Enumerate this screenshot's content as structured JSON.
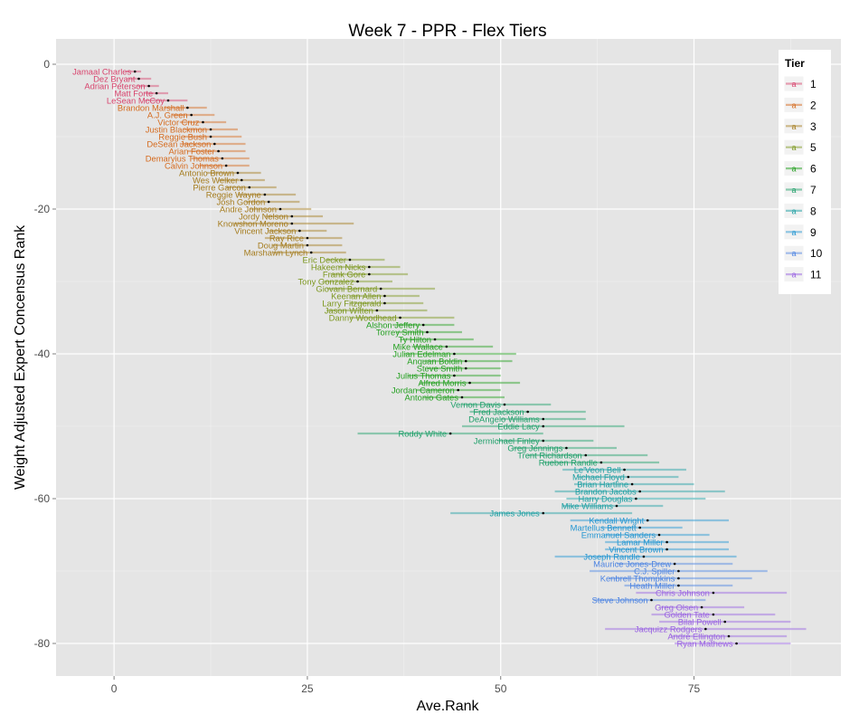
{
  "chart_data": {
    "type": "scatter",
    "title": "Week 7 - PPR - Flex Tiers",
    "xlabel": "Ave.Rank",
    "ylabel": "Weight Adjusted Expert Concensus Rank",
    "xlim": [
      -7.5,
      94
    ],
    "ylim": [
      -84.5,
      3.5
    ],
    "xticks": [
      0,
      25,
      50,
      75
    ],
    "yticks": [
      0,
      -20,
      -40,
      -60,
      -80
    ],
    "legend": {
      "title": "Tier",
      "position": "right",
      "glyph": "a"
    },
    "tiers": [
      {
        "tier": "1",
        "color": "#D8456E"
      },
      {
        "tier": "2",
        "color": "#D56B1F"
      },
      {
        "tier": "3",
        "color": "#A57C1E"
      },
      {
        "tier": "5",
        "color": "#7C971E"
      },
      {
        "tier": "6",
        "color": "#23A020"
      },
      {
        "tier": "7",
        "color": "#1FA06A"
      },
      {
        "tier": "8",
        "color": "#1EA0A3"
      },
      {
        "tier": "9",
        "color": "#2396D2"
      },
      {
        "tier": "10",
        "color": "#4D84E2"
      },
      {
        "tier": "11",
        "color": "#9A63E2"
      }
    ],
    "players": [
      {
        "name": "Jamaal Charles",
        "rank": 1,
        "avg": 2.7,
        "lo": 1.5,
        "hi": 3.5,
        "tier": "1"
      },
      {
        "name": "Dez Bryant",
        "rank": 2,
        "avg": 3.2,
        "lo": 1.8,
        "hi": 4.8,
        "tier": "1"
      },
      {
        "name": "Adrian Peterson",
        "rank": 3,
        "avg": 4.5,
        "lo": 3.0,
        "hi": 5.8,
        "tier": "1"
      },
      {
        "name": "Matt Forte",
        "rank": 4,
        "avg": 5.5,
        "lo": 4.0,
        "hi": 7.0,
        "tier": "1"
      },
      {
        "name": "LeSean McCoy",
        "rank": 5,
        "avg": 7.0,
        "lo": 4.0,
        "hi": 9.5,
        "tier": "1"
      },
      {
        "name": "Brandon Marshall",
        "rank": 6,
        "avg": 9.5,
        "lo": 6.5,
        "hi": 12.0,
        "tier": "2"
      },
      {
        "name": "A.J. Green",
        "rank": 7,
        "avg": 10.0,
        "lo": 7.5,
        "hi": 13.0,
        "tier": "2"
      },
      {
        "name": "Victor Cruz",
        "rank": 8,
        "avg": 11.5,
        "lo": 8.5,
        "hi": 14.5,
        "tier": "2"
      },
      {
        "name": "Justin Blackmon",
        "rank": 9,
        "avg": 12.5,
        "lo": 9.0,
        "hi": 16.0,
        "tier": "2"
      },
      {
        "name": "Reggie Bush",
        "rank": 10,
        "avg": 12.5,
        "lo": 9.0,
        "hi": 16.5,
        "tier": "2"
      },
      {
        "name": "DeSean Jackson",
        "rank": 11,
        "avg": 13.0,
        "lo": 8.5,
        "hi": 17.0,
        "tier": "2"
      },
      {
        "name": "Arian Foster",
        "rank": 12,
        "avg": 13.5,
        "lo": 9.5,
        "hi": 17.0,
        "tier": "2"
      },
      {
        "name": "Demaryius Thomas",
        "rank": 13,
        "avg": 14.0,
        "lo": 10.0,
        "hi": 17.5,
        "tier": "2"
      },
      {
        "name": "Calvin Johnson",
        "rank": 14,
        "avg": 14.5,
        "lo": 11.0,
        "hi": 17.5,
        "tier": "2"
      },
      {
        "name": "Antonio Brown",
        "rank": 15,
        "avg": 16.0,
        "lo": 12.0,
        "hi": 19.0,
        "tier": "3"
      },
      {
        "name": "Wes Welker",
        "rank": 16,
        "avg": 16.5,
        "lo": 13.5,
        "hi": 19.5,
        "tier": "3"
      },
      {
        "name": "Pierre Garcon",
        "rank": 17,
        "avg": 17.5,
        "lo": 14.5,
        "hi": 21.0,
        "tier": "3"
      },
      {
        "name": "Reggie Wayne",
        "rank": 18,
        "avg": 19.5,
        "lo": 16.0,
        "hi": 23.5,
        "tier": "3"
      },
      {
        "name": "Josh Gordon",
        "rank": 19,
        "avg": 20.0,
        "lo": 17.0,
        "hi": 24.0,
        "tier": "3"
      },
      {
        "name": "Andre Johnson",
        "rank": 20,
        "avg": 21.5,
        "lo": 17.5,
        "hi": 25.5,
        "tier": "3"
      },
      {
        "name": "Jordy Nelson",
        "rank": 21,
        "avg": 23.0,
        "lo": 19.5,
        "hi": 27.0,
        "tier": "3"
      },
      {
        "name": "Knowshon Moreno",
        "rank": 22,
        "avg": 23.0,
        "lo": 15.5,
        "hi": 31.0,
        "tier": "3"
      },
      {
        "name": "Vincent Jackson",
        "rank": 23,
        "avg": 24.0,
        "lo": 20.0,
        "hi": 27.5,
        "tier": "3"
      },
      {
        "name": "Ray Rice",
        "rank": 24,
        "avg": 25.0,
        "lo": 19.5,
        "hi": 29.5,
        "tier": "3"
      },
      {
        "name": "Doug Martin",
        "rank": 25,
        "avg": 25.0,
        "lo": 20.5,
        "hi": 29.5,
        "tier": "3"
      },
      {
        "name": "Marshawn Lynch",
        "rank": 26,
        "avg": 25.5,
        "lo": 20.5,
        "hi": 30.0,
        "tier": "3"
      },
      {
        "name": "Eric Decker",
        "rank": 27,
        "avg": 30.5,
        "lo": 27.5,
        "hi": 35.0,
        "tier": "5"
      },
      {
        "name": "Hakeem Nicks",
        "rank": 28,
        "avg": 33.0,
        "lo": 29.0,
        "hi": 37.0,
        "tier": "5"
      },
      {
        "name": "Frank Gore",
        "rank": 29,
        "avg": 33.0,
        "lo": 28.0,
        "hi": 38.0,
        "tier": "5"
      },
      {
        "name": "Tony Gonzalez",
        "rank": 30,
        "avg": 31.5,
        "lo": 27.0,
        "hi": 36.0,
        "tier": "5"
      },
      {
        "name": "Giovani Bernard",
        "rank": 31,
        "avg": 34.5,
        "lo": 27.5,
        "hi": 41.5,
        "tier": "5"
      },
      {
        "name": "Keenan Allen",
        "rank": 32,
        "avg": 35.0,
        "lo": 30.5,
        "hi": 39.5,
        "tier": "5"
      },
      {
        "name": "Larry Fitzgerald",
        "rank": 33,
        "avg": 35.0,
        "lo": 30.5,
        "hi": 40.0,
        "tier": "5"
      },
      {
        "name": "Jason Witten",
        "rank": 34,
        "avg": 34.0,
        "lo": 27.5,
        "hi": 40.5,
        "tier": "5"
      },
      {
        "name": "Danny Woodhead",
        "rank": 35,
        "avg": 37.0,
        "lo": 30.5,
        "hi": 44.0,
        "tier": "5"
      },
      {
        "name": "Alshon Jeffery",
        "rank": 36,
        "avg": 40.0,
        "lo": 36.0,
        "hi": 44.0,
        "tier": "6"
      },
      {
        "name": "Torrey Smith",
        "rank": 37,
        "avg": 40.5,
        "lo": 36.5,
        "hi": 45.0,
        "tier": "6"
      },
      {
        "name": "Ty Hilton",
        "rank": 38,
        "avg": 41.5,
        "lo": 37.0,
        "hi": 46.5,
        "tier": "6"
      },
      {
        "name": "Mike Wallace",
        "rank": 39,
        "avg": 43.0,
        "lo": 38.5,
        "hi": 49.0,
        "tier": "6"
      },
      {
        "name": "Julian Edelman",
        "rank": 40,
        "avg": 44.0,
        "lo": 37.5,
        "hi": 52.0,
        "tier": "6"
      },
      {
        "name": "Anquan Boldin",
        "rank": 41,
        "avg": 45.5,
        "lo": 40.0,
        "hi": 51.5,
        "tier": "6"
      },
      {
        "name": "Steve Smith",
        "rank": 42,
        "avg": 45.5,
        "lo": 40.5,
        "hi": 50.0,
        "tier": "6"
      },
      {
        "name": "Julius Thomas",
        "rank": 43,
        "avg": 44.0,
        "lo": 38.0,
        "hi": 50.0,
        "tier": "6"
      },
      {
        "name": "Alfred Morris",
        "rank": 44,
        "avg": 46.0,
        "lo": 39.5,
        "hi": 52.5,
        "tier": "6"
      },
      {
        "name": "Jordan Cameron",
        "rank": 45,
        "avg": 44.5,
        "lo": 39.0,
        "hi": 50.0,
        "tier": "6"
      },
      {
        "name": "Antonio Gates",
        "rank": 46,
        "avg": 45.0,
        "lo": 40.0,
        "hi": 50.5,
        "tier": "6"
      },
      {
        "name": "Vernon Davis",
        "rank": 47,
        "avg": 50.5,
        "lo": 45.0,
        "hi": 56.5,
        "tier": "7"
      },
      {
        "name": "Fred Jackson",
        "rank": 48,
        "avg": 53.5,
        "lo": 46.0,
        "hi": 61.0,
        "tier": "7"
      },
      {
        "name": "DeAngelo Williams",
        "rank": 49,
        "avg": 55.5,
        "lo": 50.0,
        "hi": 61.0,
        "tier": "7"
      },
      {
        "name": "Eddie Lacy",
        "rank": 50,
        "avg": 55.5,
        "lo": 45.0,
        "hi": 66.0,
        "tier": "7"
      },
      {
        "name": "Roddy White",
        "rank": 51,
        "avg": 43.5,
        "lo": 31.5,
        "hi": 55.5,
        "tier": "7"
      },
      {
        "name": "Jermichael Finley",
        "rank": 52,
        "avg": 55.5,
        "lo": 49.5,
        "hi": 62.0,
        "tier": "7"
      },
      {
        "name": "Greg Jennings",
        "rank": 53,
        "avg": 58.5,
        "lo": 51.5,
        "hi": 65.0,
        "tier": "7"
      },
      {
        "name": "Trent Richardson",
        "rank": 54,
        "avg": 61.0,
        "lo": 53.5,
        "hi": 69.0,
        "tier": "7"
      },
      {
        "name": "Rueben Randle",
        "rank": 55,
        "avg": 63.0,
        "lo": 55.5,
        "hi": 70.5,
        "tier": "7"
      },
      {
        "name": "Le'Veon Bell",
        "rank": 56,
        "avg": 66.0,
        "lo": 58.0,
        "hi": 74.0,
        "tier": "8"
      },
      {
        "name": "Michael Floyd",
        "rank": 57,
        "avg": 66.5,
        "lo": 60.0,
        "hi": 73.0,
        "tier": "8"
      },
      {
        "name": "Brian Hartline",
        "rank": 58,
        "avg": 67.0,
        "lo": 59.5,
        "hi": 75.0,
        "tier": "8"
      },
      {
        "name": "Brandon Jacobs",
        "rank": 59,
        "avg": 68.0,
        "lo": 57.0,
        "hi": 79.0,
        "tier": "8"
      },
      {
        "name": "Harry Douglas",
        "rank": 60,
        "avg": 67.5,
        "lo": 58.5,
        "hi": 76.5,
        "tier": "8"
      },
      {
        "name": "Mike Williams",
        "rank": 61,
        "avg": 65.0,
        "lo": 58.0,
        "hi": 71.0,
        "tier": "8"
      },
      {
        "name": "James Jones",
        "rank": 62,
        "avg": 55.5,
        "lo": 43.5,
        "hi": 67.0,
        "tier": "8"
      },
      {
        "name": "Kendall Wright",
        "rank": 63,
        "avg": 69.0,
        "lo": 59.0,
        "hi": 79.5,
        "tier": "9"
      },
      {
        "name": "Martellus Bennett",
        "rank": 64,
        "avg": 68.0,
        "lo": 63.0,
        "hi": 73.5,
        "tier": "9"
      },
      {
        "name": "Emmanuel Sanders",
        "rank": 65,
        "avg": 70.5,
        "lo": 63.5,
        "hi": 77.0,
        "tier": "9"
      },
      {
        "name": "Lamar Miller",
        "rank": 66,
        "avg": 71.5,
        "lo": 63.5,
        "hi": 79.5,
        "tier": "9"
      },
      {
        "name": "Vincent Brown",
        "rank": 67,
        "avg": 71.5,
        "lo": 63.5,
        "hi": 79.5,
        "tier": "9"
      },
      {
        "name": "Joseph Randle",
        "rank": 68,
        "avg": 68.5,
        "lo": 57.0,
        "hi": 80.5,
        "tier": "9"
      },
      {
        "name": "Maurice Jones-Drew",
        "rank": 69,
        "avg": 72.5,
        "lo": 65.0,
        "hi": 80.0,
        "tier": "10"
      },
      {
        "name": "C.J. Spiller",
        "rank": 70,
        "avg": 73.0,
        "lo": 61.5,
        "hi": 84.5,
        "tier": "10"
      },
      {
        "name": "Kenbrell Thompkins",
        "rank": 71,
        "avg": 73.0,
        "lo": 64.0,
        "hi": 82.5,
        "tier": "10"
      },
      {
        "name": "Heath Miller",
        "rank": 72,
        "avg": 73.0,
        "lo": 66.0,
        "hi": 80.0,
        "tier": "10"
      },
      {
        "name": "Chris Johnson",
        "rank": 73,
        "avg": 77.5,
        "lo": 67.5,
        "hi": 87.0,
        "tier": "11"
      },
      {
        "name": "Steve Johnson",
        "rank": 74,
        "avg": 69.5,
        "lo": 62.0,
        "hi": 76.5,
        "tier": "10"
      },
      {
        "name": "Greg Olsen",
        "rank": 75,
        "avg": 76.0,
        "lo": 70.5,
        "hi": 81.5,
        "tier": "11"
      },
      {
        "name": "Golden Tate",
        "rank": 76,
        "avg": 77.5,
        "lo": 69.5,
        "hi": 85.5,
        "tier": "11"
      },
      {
        "name": "Bilal Powell",
        "rank": 77,
        "avg": 79.0,
        "lo": 70.5,
        "hi": 87.5,
        "tier": "11"
      },
      {
        "name": "Jacquizz Rodgers",
        "rank": 78,
        "avg": 76.5,
        "lo": 63.5,
        "hi": 89.5,
        "tier": "11"
      },
      {
        "name": "Andre Ellington",
        "rank": 79,
        "avg": 79.5,
        "lo": 72.0,
        "hi": 87.0,
        "tier": "11"
      },
      {
        "name": "Ryan Mathews",
        "rank": 80,
        "avg": 80.5,
        "lo": 72.5,
        "hi": 87.5,
        "tier": "11"
      }
    ]
  }
}
